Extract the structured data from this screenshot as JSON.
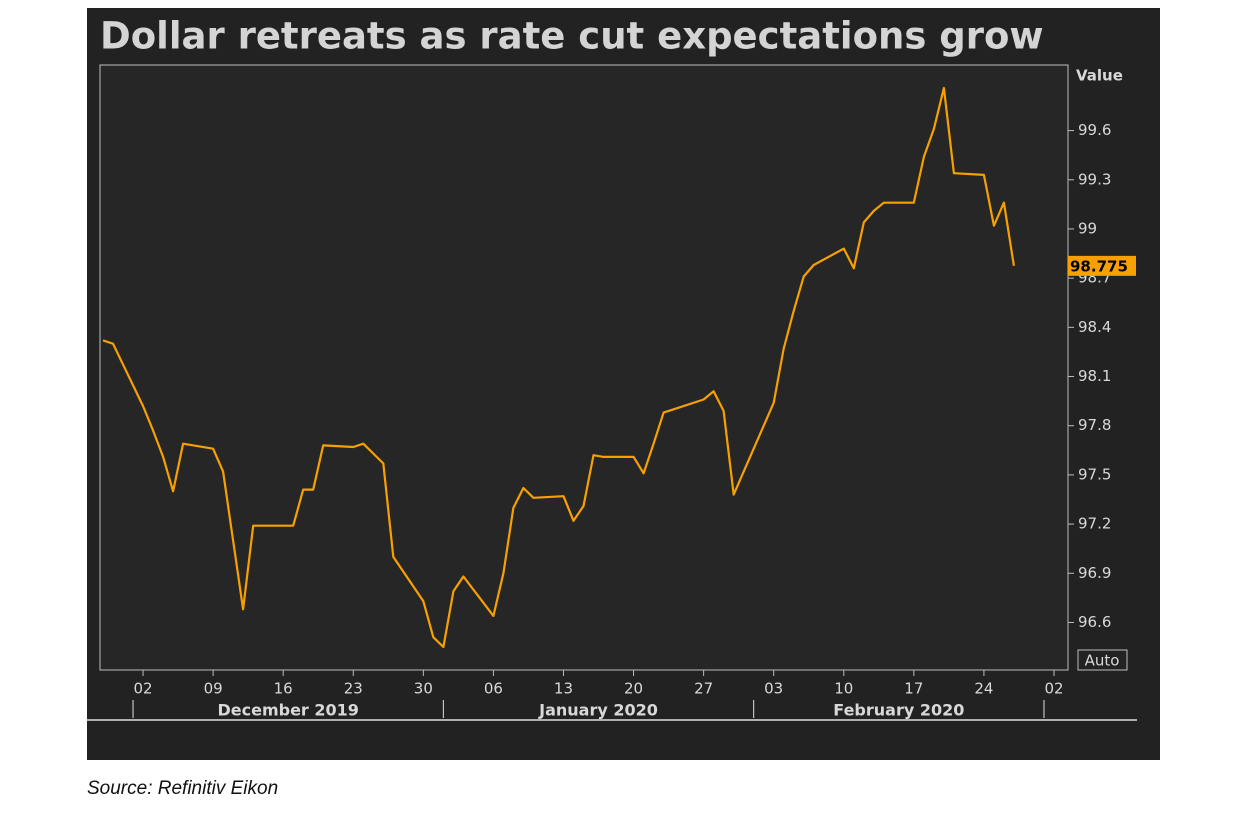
{
  "chart_data": {
    "type": "line",
    "title": "Dollar retreats as rate cut expectations grow",
    "y_axis_label": "Value",
    "scale_mode": "Auto",
    "source": "Source: Refinitiv Eikon",
    "color": "#f7a000",
    "x": [
      "2019-11-28",
      "2019-11-29",
      "2019-12-02",
      "2019-12-03",
      "2019-12-04",
      "2019-12-05",
      "2019-12-06",
      "2019-12-09",
      "2019-12-10",
      "2019-12-11",
      "2019-12-12",
      "2019-12-13",
      "2019-12-16",
      "2019-12-17",
      "2019-12-18",
      "2019-12-19",
      "2019-12-20",
      "2019-12-23",
      "2019-12-24",
      "2019-12-26",
      "2019-12-27",
      "2019-12-30",
      "2019-12-31",
      "2020-01-01",
      "2020-01-02",
      "2020-01-03",
      "2020-01-06",
      "2020-01-07",
      "2020-01-08",
      "2020-01-09",
      "2020-01-10",
      "2020-01-13",
      "2020-01-14",
      "2020-01-15",
      "2020-01-16",
      "2020-01-17",
      "2020-01-20",
      "2020-01-21",
      "2020-01-22",
      "2020-01-23",
      "2020-01-24",
      "2020-01-27",
      "2020-01-28",
      "2020-01-29",
      "2020-01-30",
      "2020-01-31",
      "2020-02-03",
      "2020-02-04",
      "2020-02-05",
      "2020-02-06",
      "2020-02-07",
      "2020-02-10",
      "2020-02-11",
      "2020-02-12",
      "2020-02-13",
      "2020-02-14",
      "2020-02-17",
      "2020-02-18",
      "2020-02-19",
      "2020-02-20",
      "2020-02-21",
      "2020-02-24",
      "2020-02-25",
      "2020-02-26",
      "2020-02-27"
    ],
    "values": [
      98.32,
      98.3,
      97.92,
      97.77,
      97.61,
      97.4,
      97.69,
      97.66,
      97.52,
      97.1,
      96.68,
      97.19,
      97.19,
      97.19,
      97.41,
      97.41,
      97.68,
      97.67,
      97.69,
      97.57,
      97.0,
      96.73,
      96.51,
      96.45,
      96.79,
      96.88,
      96.64,
      96.9,
      97.3,
      97.42,
      97.36,
      97.37,
      97.22,
      97.31,
      97.62,
      97.61,
      97.61,
      97.51,
      97.69,
      97.88,
      97.9,
      97.96,
      98.01,
      97.89,
      97.38,
      97.52,
      97.94,
      98.27,
      98.5,
      98.71,
      98.78,
      98.88,
      98.76,
      99.04,
      99.11,
      99.16,
      99.16,
      99.44,
      99.61,
      99.86,
      99.34,
      99.33,
      99.02,
      99.16,
      98.775
    ],
    "xlim": [
      "2019-11-28",
      "2020-03-03"
    ],
    "xticks": [
      {
        "value": "2019-12-02",
        "label": "02"
      },
      {
        "value": "2019-12-09",
        "label": "09"
      },
      {
        "value": "2019-12-16",
        "label": "16"
      },
      {
        "value": "2019-12-23",
        "label": "23"
      },
      {
        "value": "2019-12-30",
        "label": "30"
      },
      {
        "value": "2020-01-06",
        "label": "06"
      },
      {
        "value": "2020-01-13",
        "label": "13"
      },
      {
        "value": "2020-01-20",
        "label": "20"
      },
      {
        "value": "2020-01-27",
        "label": "27"
      },
      {
        "value": "2020-02-03",
        "label": "03"
      },
      {
        "value": "2020-02-10",
        "label": "10"
      },
      {
        "value": "2020-02-17",
        "label": "17"
      },
      {
        "value": "2020-02-24",
        "label": "24"
      },
      {
        "value": "2020-03-02",
        "label": "02"
      }
    ],
    "month_labels": [
      {
        "value": "2019-12",
        "label": "December 2019"
      },
      {
        "value": "2020-01",
        "label": "January 2020"
      },
      {
        "value": "2020-02",
        "label": "February 2020"
      }
    ],
    "ylim": [
      96.31,
      100.0
    ],
    "yticks": [
      96.6,
      96.9,
      97.2,
      97.5,
      97.8,
      98.1,
      98.4,
      98.7,
      99,
      99.3,
      99.6
    ]
  }
}
